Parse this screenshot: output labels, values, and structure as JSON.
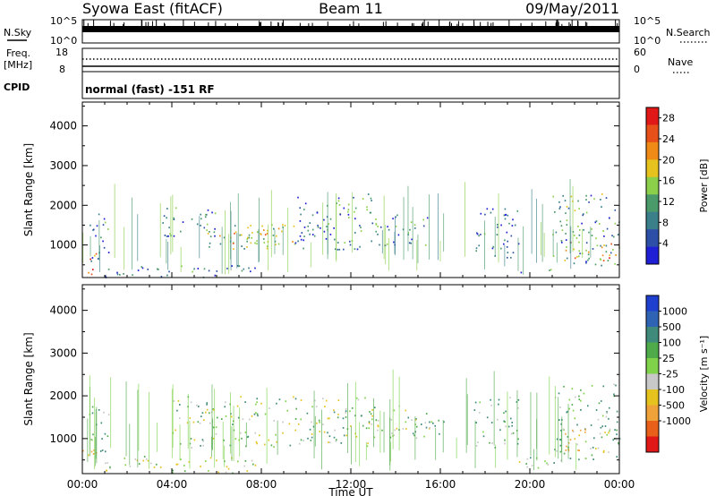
{
  "header": {
    "title": "Syowa East (fitACF)",
    "beam": "Beam 11",
    "date": "09/May/2011"
  },
  "panels": {
    "nsky": {
      "label": "N.Sky",
      "ticks": [
        "10^5",
        "10^0"
      ]
    },
    "nsearch": {
      "label": "N.Search",
      "ticks": [
        "10^5",
        "10^0"
      ]
    },
    "freq": {
      "label_top": "Freq.",
      "label_unit": "[MHz]",
      "ticks": [
        "18",
        "8"
      ]
    },
    "nave": {
      "label": "Nave",
      "ticks": [
        "60",
        "0"
      ]
    },
    "cpid": {
      "label": "CPID",
      "mode": "normal (fast) -151 RF"
    }
  },
  "colors": {
    "power_scale": [
      "#1f1fd6",
      "#2d4fa8",
      "#3a7f8a",
      "#4a9a6a",
      "#8bcf4a",
      "#e6c21e",
      "#f08a17",
      "#e8501a",
      "#e01818"
    ],
    "velocity_scale": [
      "#1f3fcf",
      "#2f64b5",
      "#3f8a7a",
      "#4faa4a",
      "#7fd24a",
      "#c8c8c8",
      "#e6c21e",
      "#f0a23a",
      "#e8601a",
      "#e01818"
    ]
  },
  "chart_data": [
    {
      "type": "heatmap",
      "name": "power",
      "xlabel": "Time UT",
      "ylabel": "Slant Range [km]",
      "xlim": [
        0,
        24
      ],
      "ylim": [
        180,
        4600
      ],
      "xticks": [
        "00:00",
        "04:00",
        "08:00",
        "12:00",
        "16:00",
        "20:00",
        "00:00"
      ],
      "yticks": [
        1000,
        2000,
        3000,
        4000
      ],
      "colorbar": {
        "label": "Power [dB]",
        "ticks": [
          4,
          8,
          12,
          16,
          20,
          24,
          28
        ],
        "range": [
          0,
          30
        ]
      },
      "regions": [
        {
          "t0": 0.0,
          "t1": 0.6,
          "r0": 200,
          "r1": 800,
          "value": 24
        },
        {
          "t0": 0.3,
          "t1": 1.2,
          "r0": 600,
          "r1": 1800,
          "value": 8
        },
        {
          "t0": 1.0,
          "t1": 8.0,
          "r0": 200,
          "r1": 500,
          "value": 6
        },
        {
          "t0": 3.5,
          "t1": 6.0,
          "r0": 1200,
          "r1": 2000,
          "value": 8
        },
        {
          "t0": 5.5,
          "t1": 9.5,
          "r0": 900,
          "r1": 1600,
          "value": 14
        },
        {
          "t0": 6.0,
          "t1": 8.5,
          "r0": 1050,
          "r1": 1400,
          "value": 18
        },
        {
          "t0": 9.5,
          "t1": 13.0,
          "r0": 900,
          "r1": 2300,
          "value": 8
        },
        {
          "t0": 13.0,
          "t1": 15.5,
          "r0": 1000,
          "r1": 1800,
          "value": 8
        },
        {
          "t0": 17.5,
          "t1": 19.5,
          "r0": 700,
          "r1": 2000,
          "value": 6
        },
        {
          "t0": 19.5,
          "t1": 21.0,
          "r0": 280,
          "r1": 400,
          "value": 10
        },
        {
          "t0": 21.0,
          "t1": 24.0,
          "r0": 500,
          "r1": 2300,
          "value": 10
        },
        {
          "t0": 21.5,
          "t1": 24.0,
          "r0": 600,
          "r1": 1100,
          "value": 20
        }
      ]
    },
    {
      "type": "heatmap",
      "name": "velocity",
      "xlabel": "Time UT",
      "ylabel": "Slant Range [km]",
      "xlim": [
        0,
        24
      ],
      "ylim": [
        180,
        4600
      ],
      "xticks": [
        "00:00",
        "04:00",
        "08:00",
        "12:00",
        "16:00",
        "20:00",
        "00:00"
      ],
      "yticks": [
        1000,
        2000,
        3000,
        4000
      ],
      "colorbar": {
        "label": "Velocity [m s⁻¹]",
        "ticks": [
          1000,
          500,
          100,
          25,
          -25,
          -100,
          -500,
          -1000
        ]
      },
      "regions": [
        {
          "t0": 0.0,
          "t1": 0.6,
          "r0": 200,
          "r1": 800,
          "value": -500
        },
        {
          "t0": 0.3,
          "t1": 1.2,
          "r0": 600,
          "r1": 1800,
          "value": 100
        },
        {
          "t0": 1.0,
          "t1": 8.0,
          "r0": 200,
          "r1": 600,
          "value": -100
        },
        {
          "t0": 4.0,
          "t1": 13.0,
          "r0": 800,
          "r1": 2000,
          "value": 0
        },
        {
          "t0": 13.0,
          "t1": 15.5,
          "r0": 1000,
          "r1": 1800,
          "value": 0
        },
        {
          "t0": 14.5,
          "t1": 16.5,
          "r0": 1100,
          "r1": 1500,
          "value": 100
        },
        {
          "t0": 17.5,
          "t1": 19.5,
          "r0": 800,
          "r1": 2000,
          "value": 100
        },
        {
          "t0": 19.0,
          "t1": 21.5,
          "r0": 300,
          "r1": 600,
          "value": -25
        },
        {
          "t0": 21.0,
          "t1": 24.0,
          "r0": 500,
          "r1": 2300,
          "value": 100
        },
        {
          "t0": 21.5,
          "t1": 23.5,
          "r0": 700,
          "r1": 1300,
          "value": -500
        }
      ]
    }
  ]
}
